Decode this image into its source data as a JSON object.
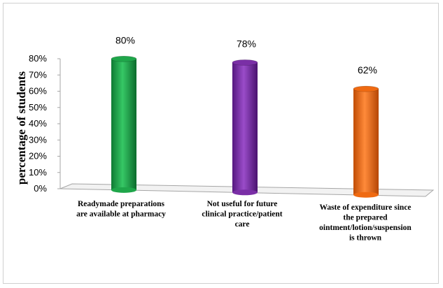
{
  "chart_data": {
    "type": "bar",
    "title": "",
    "xlabel": "",
    "ylabel": "percentage of students",
    "ylim": [
      0,
      80
    ],
    "y_ticks": [
      "0%",
      "10%",
      "20%",
      "30%",
      "40%",
      "50%",
      "60%",
      "70%",
      "80%"
    ],
    "categories": [
      [
        "Readymade preparations",
        "are available at pharmacy"
      ],
      [
        "Not useful for future",
        "clinical practice/patient",
        "care"
      ],
      [
        "Waste of expenditure since",
        "the prepared",
        "ointment/lotion/suspension",
        "is thrown"
      ]
    ],
    "values": [
      80,
      78,
      62
    ],
    "data_labels": [
      "80%",
      "78%",
      "62%"
    ],
    "colors": [
      "#1fa64a",
      "#7a2fa6",
      "#ef6a12"
    ],
    "grid": false,
    "legend": "none",
    "style": "3d-cylinder"
  }
}
